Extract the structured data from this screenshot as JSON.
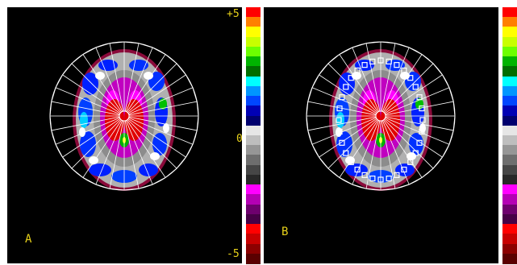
{
  "panels": [
    {
      "label": "A",
      "overlay": "none"
    },
    {
      "label": "B",
      "overlay": "white-square-markers"
    }
  ],
  "scale": {
    "ticks": [
      "+5",
      "0",
      "-5"
    ],
    "colors": [
      "#ff0000",
      "#ff7f00",
      "#ffff00",
      "#c8ff00",
      "#6cff00",
      "#00b400",
      "#006e00",
      "#00ffff",
      "#0096ff",
      "#0046ff",
      "#0000b4",
      "#00006e",
      "#e6e6e6",
      "#bebebe",
      "#969696",
      "#6e6e6e",
      "#464646",
      "#282828",
      "#ff00ff",
      "#b400b4",
      "#6e006e",
      "#460046",
      "#ff0000",
      "#c80000",
      "#8c0000",
      "#5a0000"
    ]
  },
  "colors": {
    "grid": "#ffffff",
    "label": "#e8d21a",
    "background": "#000000"
  }
}
